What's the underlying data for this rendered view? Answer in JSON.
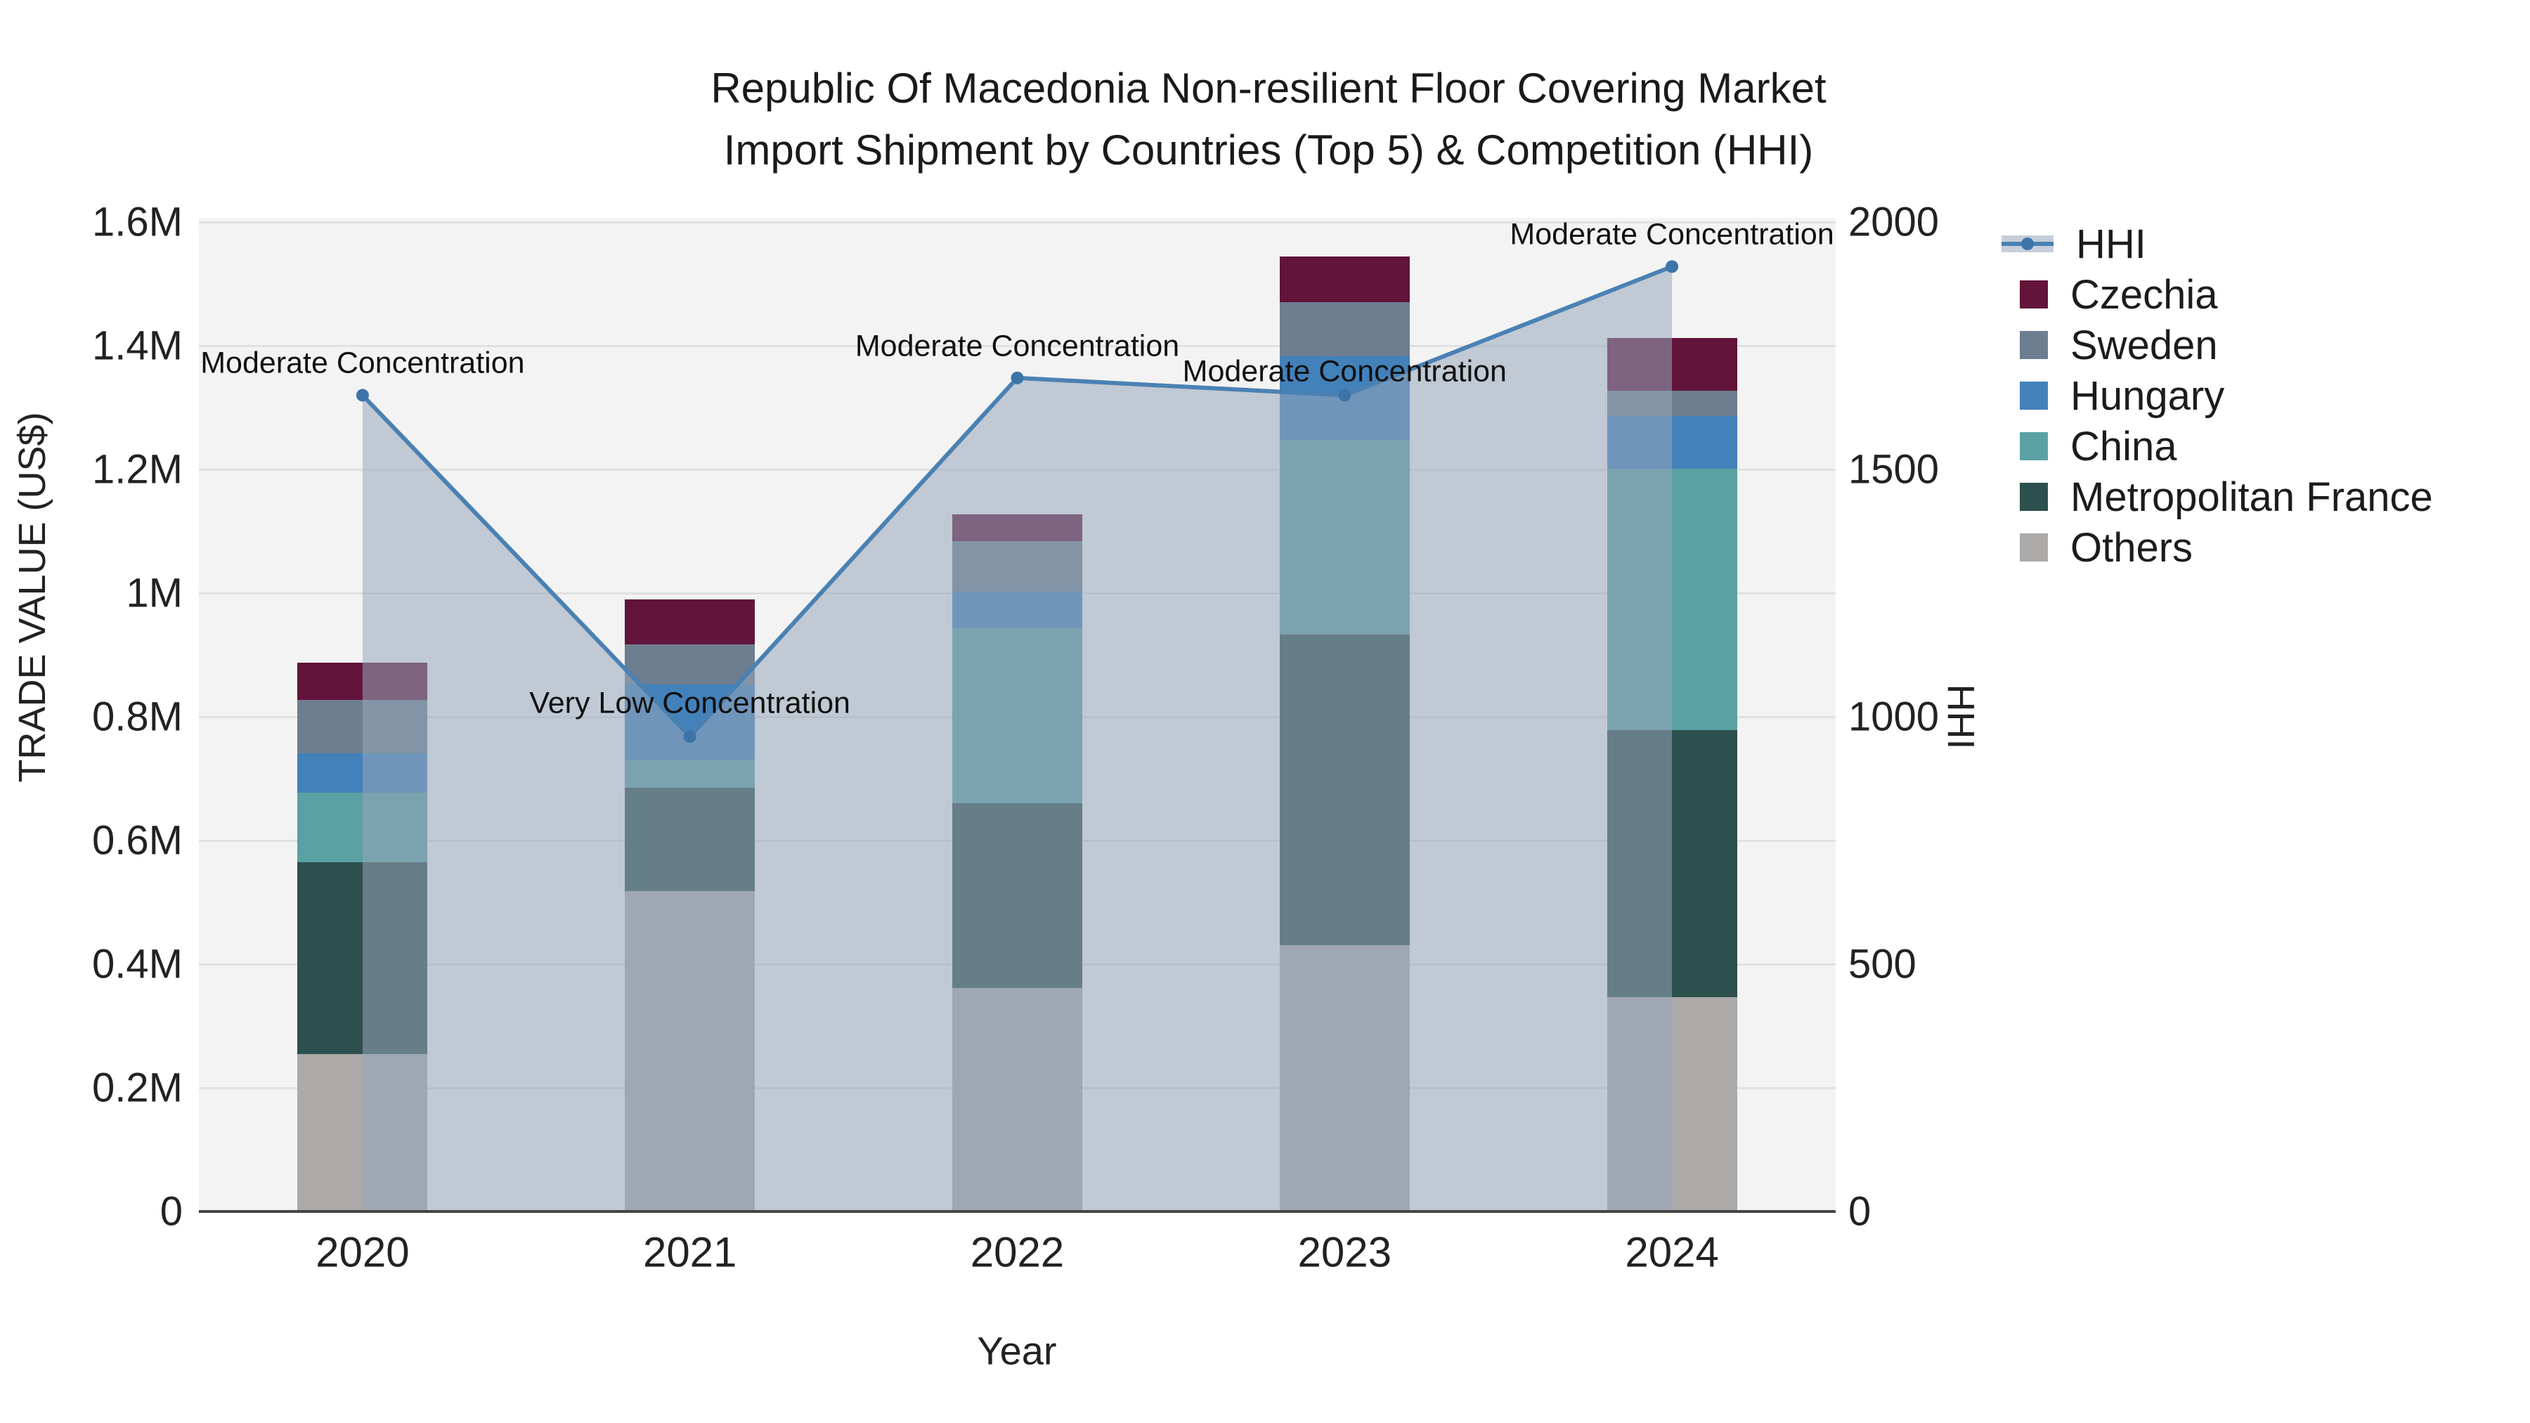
{
  "title": {
    "line1": "Republic Of Macedonia Non-resilient Floor Covering Market",
    "line2": "Import Shipment by Countries (Top 5) & Competition (HHI)"
  },
  "axes": {
    "y_left": {
      "title": "TRADE VALUE (US$)",
      "ticks": [
        {
          "label": "0",
          "value": 0
        },
        {
          "label": "0.2M",
          "value": 200000
        },
        {
          "label": "0.4M",
          "value": 400000
        },
        {
          "label": "0.6M",
          "value": 600000
        },
        {
          "label": "0.8M",
          "value": 800000
        },
        {
          "label": "1M",
          "value": 1000000
        },
        {
          "label": "1.2M",
          "value": 1200000
        },
        {
          "label": "1.4M",
          "value": 1400000
        },
        {
          "label": "1.6M",
          "value": 1600000
        }
      ]
    },
    "y_right": {
      "title": "HHI",
      "ticks": [
        {
          "label": "0",
          "value": 0
        },
        {
          "label": "500",
          "value": 500
        },
        {
          "label": "1000",
          "value": 1000
        },
        {
          "label": "1500",
          "value": 1500
        },
        {
          "label": "2000",
          "value": 2000
        }
      ]
    },
    "x": {
      "title": "Year"
    }
  },
  "legend": {
    "items": [
      {
        "label": "HHI",
        "type": "line",
        "color": "#4a81b3"
      },
      {
        "label": "Czechia",
        "type": "square",
        "color": "#62143a"
      },
      {
        "label": "Sweden",
        "type": "square",
        "color": "#6d7e90"
      },
      {
        "label": "Hungary",
        "type": "square",
        "color": "#4381ba"
      },
      {
        "label": "China",
        "type": "square",
        "color": "#5ba1a3"
      },
      {
        "label": "Metropolitan France",
        "type": "square",
        "color": "#2d4f4d"
      },
      {
        "label": "Others",
        "type": "square",
        "color": "#acaaa8"
      }
    ]
  },
  "chart_data": {
    "type": "combo: stacked bar + line with area fill",
    "categories": [
      "2020",
      "2021",
      "2022",
      "2023",
      "2024"
    ],
    "bar_unit": "US$",
    "bar_stack_order_bottom_to_top": [
      "Others",
      "Metropolitan France",
      "China",
      "Hungary",
      "Sweden",
      "Czechia"
    ],
    "series": [
      {
        "name": "Others",
        "color": "#acaaa8",
        "values": [
          255000,
          518000,
          361000,
          431000,
          347000
        ]
      },
      {
        "name": "Metropolitan France",
        "color": "#2d4f4d",
        "values": [
          310000,
          167000,
          299000,
          502000,
          431000
        ]
      },
      {
        "name": "China",
        "color": "#5ba1a3",
        "values": [
          112000,
          46000,
          283000,
          315000,
          423000
        ]
      },
      {
        "name": "Hungary",
        "color": "#4381ba",
        "values": [
          64000,
          121000,
          59000,
          135000,
          85000
        ]
      },
      {
        "name": "Sweden",
        "color": "#6d7e90",
        "values": [
          86000,
          65000,
          82000,
          87000,
          41000
        ]
      },
      {
        "name": "Czechia",
        "color": "#62143a",
        "values": [
          61000,
          73000,
          43000,
          74000,
          86000
        ]
      }
    ],
    "bar_totals": [
      888000,
      990000,
      1127000,
      1544000,
      1413000
    ],
    "line_series": {
      "name": "HHI",
      "axis": "right",
      "values": [
        1650,
        960,
        1685,
        1650,
        1910
      ],
      "line_color": "#4a81b3",
      "marker_color": "#3d74a8",
      "area_fill_color": "rgba(150,165,186,0.55)"
    },
    "annotations": [
      {
        "category": "2020",
        "text": "Moderate Concentration"
      },
      {
        "category": "2021",
        "text": "Very Low Concentration"
      },
      {
        "category": "2022",
        "text": "Moderate Concentration"
      },
      {
        "category": "2023",
        "text": "Moderate Concentration"
      },
      {
        "category": "2024",
        "text": "Moderate Concentration"
      }
    ],
    "ylim_left": [
      0,
      1600000
    ],
    "ylim_right": [
      0,
      2000
    ],
    "grid": "horizontal",
    "legend_position": "right",
    "plot_background": "#f3f3f3"
  }
}
